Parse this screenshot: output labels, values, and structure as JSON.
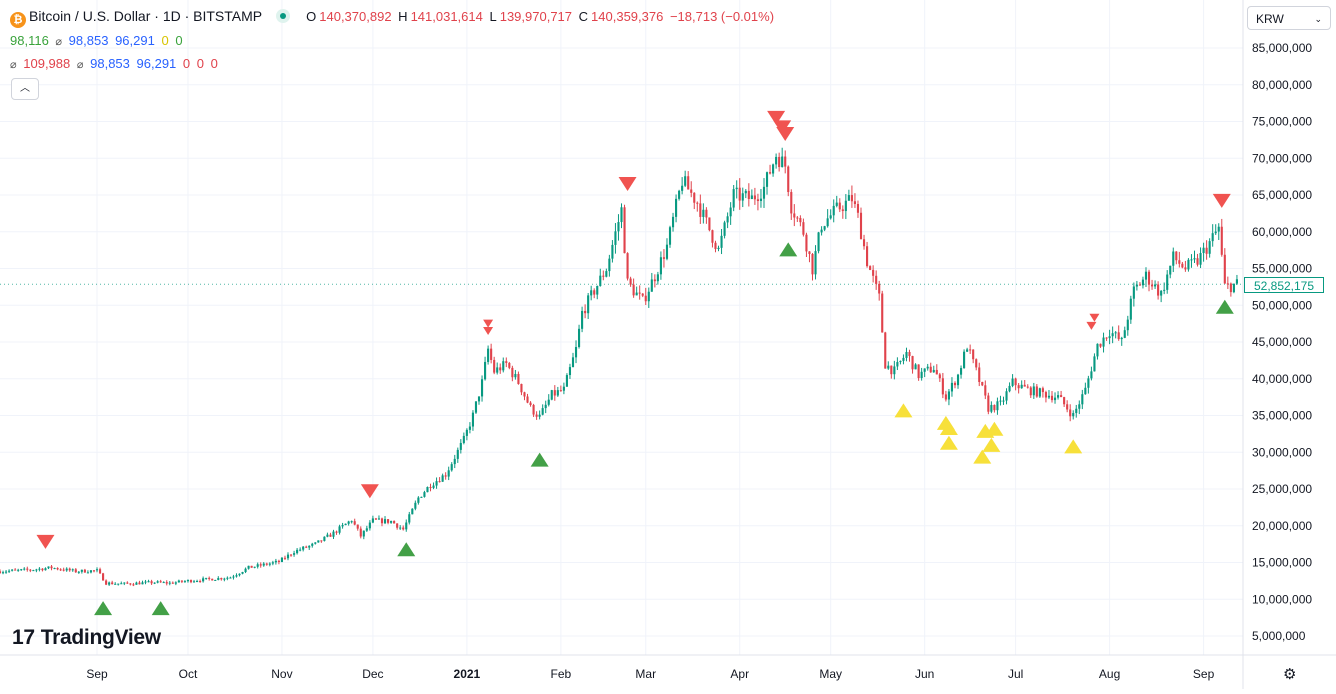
{
  "header": {
    "symbol_icon": "₿",
    "title": "Bitcoin / U.S. Dollar · 1D · BITSTAMP",
    "ohlc": {
      "o_label": "O",
      "o_value": "140,370,892",
      "h_label": "H",
      "h_value": "141,031,614",
      "l_label": "L",
      "l_value": "139,970,717",
      "c_label": "C",
      "c_value": "140,359,376",
      "change": "−18,713 (−0.01%)"
    }
  },
  "indicators": {
    "row1": {
      "v1": "98,116",
      "v2": "98,853",
      "v3": "96,291",
      "v4": "0",
      "v5": "0"
    },
    "row2": {
      "v1": "109,988",
      "v2": "98,853",
      "v3": "96,291",
      "v4": "0",
      "v5": "0",
      "v6": "0"
    }
  },
  "controls": {
    "collapse_icon": "chevron-up-icon",
    "currency": "KRW",
    "settings_icon": "gear-icon"
  },
  "price_label": "52,852,175",
  "logo": {
    "mark": "17",
    "text": "TradingView"
  },
  "colors": {
    "up": "#089981",
    "down": "#e0424b",
    "signal_sell": "#f05350",
    "signal_buy": "#43a047",
    "signal_alt": "#f7e03a",
    "grid": "#f0f3fa",
    "axis_text": "#131722"
  },
  "chart_data": {
    "type": "candlestick",
    "symbol": "Bitcoin / U.S. Dollar",
    "interval": "1D",
    "exchange": "BITSTAMP",
    "currency": "KRW",
    "x_tick_labels": [
      "Sep",
      "Oct",
      "Nov",
      "Dec",
      "2021",
      "Feb",
      "Mar",
      "Apr",
      "May",
      "Jun",
      "Jul",
      "Aug",
      "Sep"
    ],
    "x_tick_dates": [
      "2020-09-01",
      "2020-10-01",
      "2020-11-01",
      "2020-12-01",
      "2021-01-01",
      "2021-02-01",
      "2021-03-01",
      "2021-04-01",
      "2021-05-01",
      "2021-06-01",
      "2021-07-01",
      "2021-08-01",
      "2021-09-01"
    ],
    "y_tick_labels": [
      "5,000,000",
      "10,000,000",
      "15,000,000",
      "20,000,000",
      "25,000,000",
      "30,000,000",
      "35,000,000",
      "40,000,000",
      "45,000,000",
      "50,000,000",
      "55,000,000",
      "60,000,000",
      "65,000,000",
      "70,000,000",
      "75,000,000",
      "80,000,000",
      "85,000,000"
    ],
    "y_ticks": [
      5000000,
      10000000,
      15000000,
      20000000,
      25000000,
      30000000,
      35000000,
      40000000,
      45000000,
      50000000,
      55000000,
      60000000,
      65000000,
      70000000,
      75000000,
      80000000,
      85000000
    ],
    "x_range": [
      "2020-07-31",
      "2021-09-14"
    ],
    "y_range": [
      0,
      88000000
    ],
    "last_price": 52852175,
    "close_series": {
      "date_format": "YYYY-MM-DD",
      "points": [
        [
          "2020-07-31",
          13800000
        ],
        [
          "2020-08-10",
          14000000
        ],
        [
          "2020-08-17",
          14300000
        ],
        [
          "2020-08-25",
          13800000
        ],
        [
          "2020-09-01",
          13900000
        ],
        [
          "2020-09-04",
          12200000
        ],
        [
          "2020-09-10",
          12100000
        ],
        [
          "2020-09-20",
          12300000
        ],
        [
          "2020-09-25",
          12200000
        ],
        [
          "2020-10-01",
          12500000
        ],
        [
          "2020-10-10",
          12800000
        ],
        [
          "2020-10-15",
          13000000
        ],
        [
          "2020-10-21",
          14300000
        ],
        [
          "2020-10-31",
          15100000
        ],
        [
          "2020-11-05",
          16500000
        ],
        [
          "2020-11-12",
          17500000
        ],
        [
          "2020-11-18",
          19000000
        ],
        [
          "2020-11-24",
          20800000
        ],
        [
          "2020-11-27",
          18600000
        ],
        [
          "2020-12-01",
          20700000
        ],
        [
          "2020-12-07",
          20600000
        ],
        [
          "2020-12-11",
          19500000
        ],
        [
          "2020-12-16",
          23800000
        ],
        [
          "2020-12-20",
          25600000
        ],
        [
          "2020-12-25",
          27000000
        ],
        [
          "2020-12-31",
          31700000
        ],
        [
          "2021-01-03",
          35000000
        ],
        [
          "2021-01-06",
          39500000
        ],
        [
          "2021-01-08",
          44000000
        ],
        [
          "2021-01-10",
          41000000
        ],
        [
          "2021-01-14",
          42000000
        ],
        [
          "2021-01-18",
          39500000
        ],
        [
          "2021-01-22",
          36000000
        ],
        [
          "2021-01-25",
          34800000
        ],
        [
          "2021-01-29",
          37800000
        ],
        [
          "2021-02-02",
          38500000
        ],
        [
          "2021-02-06",
          44000000
        ],
        [
          "2021-02-08",
          49000000
        ],
        [
          "2021-02-12",
          52000000
        ],
        [
          "2021-02-16",
          55000000
        ],
        [
          "2021-02-21",
          63000000
        ],
        [
          "2021-02-23",
          53000000
        ],
        [
          "2021-02-28",
          50500000
        ],
        [
          "2021-03-04",
          54000000
        ],
        [
          "2021-03-08",
          58000000
        ],
        [
          "2021-03-13",
          67000000
        ],
        [
          "2021-03-18",
          64000000
        ],
        [
          "2021-03-25",
          57500000
        ],
        [
          "2021-03-30",
          65000000
        ],
        [
          "2021-04-05",
          64500000
        ],
        [
          "2021-04-09",
          66000000
        ],
        [
          "2021-04-13",
          70500000
        ],
        [
          "2021-04-16",
          69000000
        ],
        [
          "2021-04-18",
          63500000
        ],
        [
          "2021-04-22",
          60000000
        ],
        [
          "2021-04-25",
          55000000
        ],
        [
          "2021-04-28",
          61000000
        ],
        [
          "2021-05-03",
          63000000
        ],
        [
          "2021-05-08",
          64500000
        ],
        [
          "2021-05-10",
          62000000
        ],
        [
          "2021-05-13",
          56000000
        ],
        [
          "2021-05-17",
          51000000
        ],
        [
          "2021-05-19",
          42000000
        ],
        [
          "2021-05-22",
          41000000
        ],
        [
          "2021-05-26",
          43500000
        ],
        [
          "2021-05-30",
          40500000
        ],
        [
          "2021-06-04",
          41500000
        ],
        [
          "2021-06-08",
          37500000
        ],
        [
          "2021-06-12",
          40500000
        ],
        [
          "2021-06-15",
          44500000
        ],
        [
          "2021-06-18",
          41000000
        ],
        [
          "2021-06-22",
          36000000
        ],
        [
          "2021-06-26",
          36500000
        ],
        [
          "2021-06-30",
          39500000
        ],
        [
          "2021-07-05",
          38500000
        ],
        [
          "2021-07-10",
          38000000
        ],
        [
          "2021-07-15",
          37500000
        ],
        [
          "2021-07-20",
          35000000
        ],
        [
          "2021-07-24",
          38500000
        ],
        [
          "2021-07-28",
          44500000
        ],
        [
          "2021-08-01",
          46500000
        ],
        [
          "2021-08-05",
          45000000
        ],
        [
          "2021-08-09",
          52000000
        ],
        [
          "2021-08-13",
          54000000
        ],
        [
          "2021-08-18",
          51500000
        ],
        [
          "2021-08-22",
          56500000
        ],
        [
          "2021-08-26",
          55000000
        ],
        [
          "2021-08-30",
          56000000
        ],
        [
          "2021-09-03",
          58500000
        ],
        [
          "2021-09-06",
          60500000
        ],
        [
          "2021-09-08",
          52500000
        ],
        [
          "2021-09-12",
          52852175
        ]
      ]
    },
    "signals": [
      {
        "date": "2020-08-15",
        "price": 17800000,
        "kind": "sell",
        "color": "red"
      },
      {
        "date": "2020-09-03",
        "price": 8800000,
        "kind": "buy",
        "color": "green"
      },
      {
        "date": "2020-09-22",
        "price": 8800000,
        "kind": "buy",
        "color": "green"
      },
      {
        "date": "2020-11-30",
        "price": 24700000,
        "kind": "sell",
        "color": "red"
      },
      {
        "date": "2020-12-12",
        "price": 16800000,
        "kind": "buy",
        "color": "green"
      },
      {
        "date": "2021-01-08",
        "price": 47500000,
        "kind": "sell",
        "color": "red",
        "small": true
      },
      {
        "date": "2021-01-08",
        "price": 46500000,
        "kind": "sell",
        "color": "red",
        "small": true
      },
      {
        "date": "2021-01-25",
        "price": 29000000,
        "kind": "buy",
        "color": "green"
      },
      {
        "date": "2021-02-23",
        "price": 66500000,
        "kind": "sell",
        "color": "red"
      },
      {
        "date": "2021-04-13",
        "price": 75500000,
        "kind": "sell",
        "color": "red"
      },
      {
        "date": "2021-04-15",
        "price": 74200000,
        "kind": "sell",
        "color": "red"
      },
      {
        "date": "2021-04-16",
        "price": 73300000,
        "kind": "sell",
        "color": "red"
      },
      {
        "date": "2021-04-17",
        "price": 57600000,
        "kind": "buy",
        "color": "green"
      },
      {
        "date": "2021-05-25",
        "price": 35700000,
        "kind": "buy",
        "color": "yellow"
      },
      {
        "date": "2021-06-08",
        "price": 34000000,
        "kind": "buy",
        "color": "yellow"
      },
      {
        "date": "2021-06-09",
        "price": 33300000,
        "kind": "buy",
        "color": "yellow"
      },
      {
        "date": "2021-06-09",
        "price": 31300000,
        "kind": "buy",
        "color": "yellow"
      },
      {
        "date": "2021-06-21",
        "price": 32900000,
        "kind": "buy",
        "color": "yellow"
      },
      {
        "date": "2021-06-20",
        "price": 29400000,
        "kind": "buy",
        "color": "yellow"
      },
      {
        "date": "2021-06-24",
        "price": 33200000,
        "kind": "buy",
        "color": "yellow"
      },
      {
        "date": "2021-06-23",
        "price": 31000000,
        "kind": "buy",
        "color": "yellow"
      },
      {
        "date": "2021-07-20",
        "price": 30800000,
        "kind": "buy",
        "color": "yellow"
      },
      {
        "date": "2021-07-27",
        "price": 48300000,
        "kind": "sell",
        "color": "red",
        "small": true
      },
      {
        "date": "2021-07-26",
        "price": 47200000,
        "kind": "sell",
        "color": "red",
        "small": true
      },
      {
        "date": "2021-09-07",
        "price": 64200000,
        "kind": "sell",
        "color": "red"
      },
      {
        "date": "2021-09-08",
        "price": 49800000,
        "kind": "buy",
        "color": "green"
      }
    ]
  }
}
